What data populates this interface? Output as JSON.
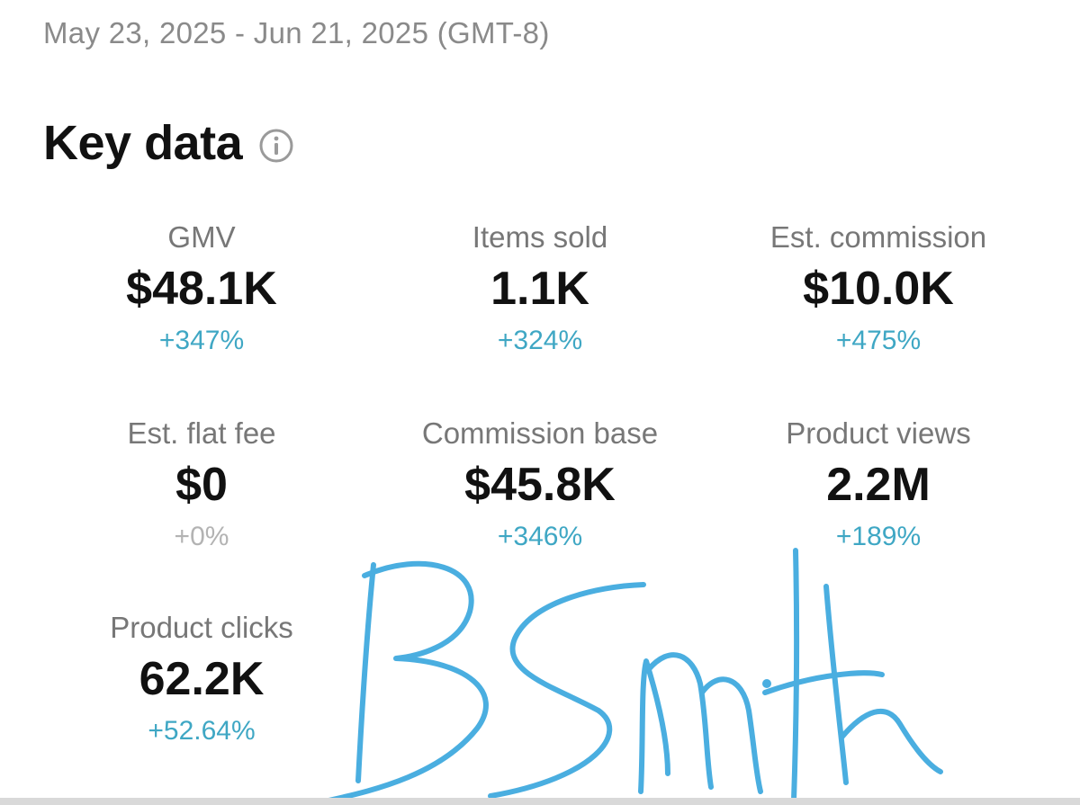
{
  "header": {
    "date_range": "May 23, 2025 - Jun 21, 2025 (GMT-8)"
  },
  "key_data": {
    "title": "Key data",
    "info_icon": "info-circle-icon",
    "metrics": [
      {
        "label": "GMV",
        "value": "$48.1K",
        "change": "+347%"
      },
      {
        "label": "Items sold",
        "value": "1.1K",
        "change": "+324%"
      },
      {
        "label": "Est. commission",
        "value": "$10.0K",
        "change": "+475%"
      },
      {
        "label": "Est. flat fee",
        "value": "$0",
        "change": "+0%"
      },
      {
        "label": "Commission base",
        "value": "$45.8K",
        "change": "+346%"
      },
      {
        "label": "Product views",
        "value": "2.2M",
        "change": "+189%"
      },
      {
        "label": "Product clicks",
        "value": "62.2K",
        "change": "+52.64%"
      }
    ]
  },
  "signature": {
    "text": "BSmith",
    "ink_color": "#4aaee0"
  },
  "colors": {
    "positive_change": "#3fa7c4",
    "neutral_change": "#b3b3b3",
    "label_gray": "#777777",
    "date_gray": "#8a8a8a"
  }
}
